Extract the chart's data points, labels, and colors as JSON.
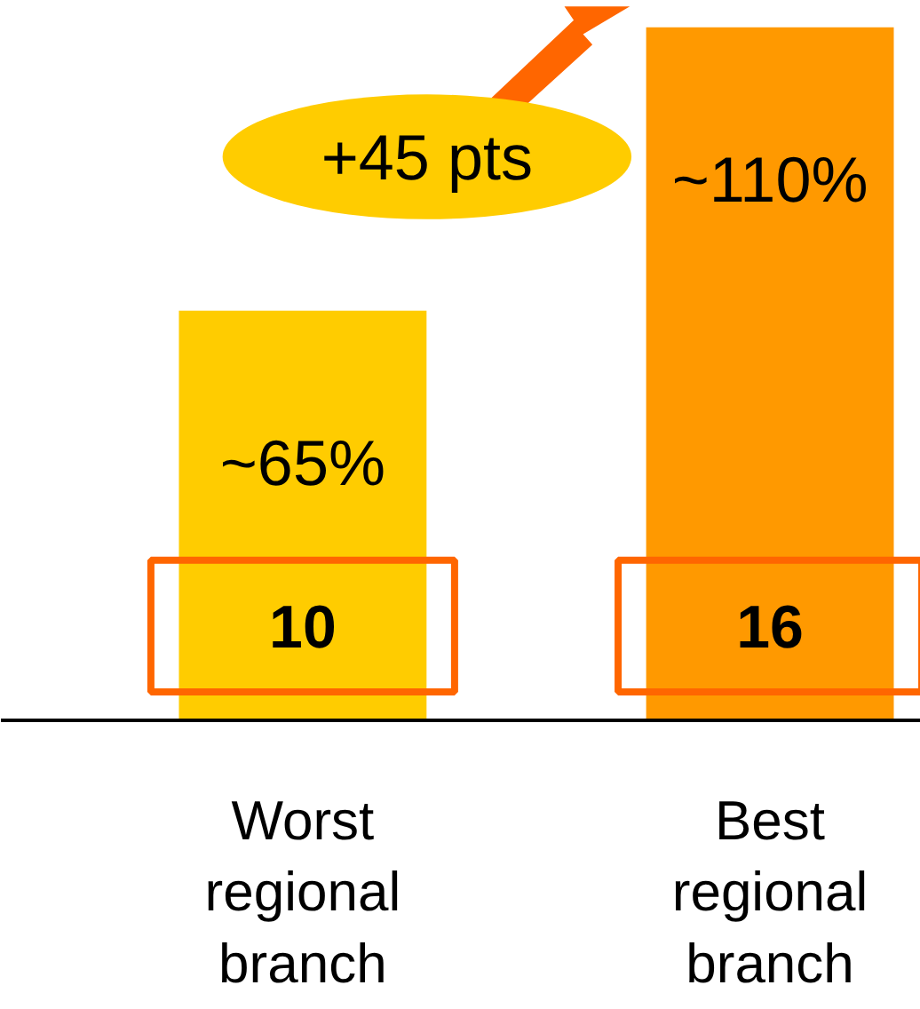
{
  "chart_data": {
    "type": "bar",
    "categories": [
      "Worst regional branch",
      "Best regional branch"
    ],
    "values": [
      65,
      110
    ],
    "colors": [
      "#ffcc00",
      "#ff9900"
    ],
    "value_labels": [
      "~65%",
      "~110%"
    ],
    "annotations": [
      "10",
      "16",
      "+45 pts"
    ],
    "tick_labels": false,
    "grid": false
  }
}
